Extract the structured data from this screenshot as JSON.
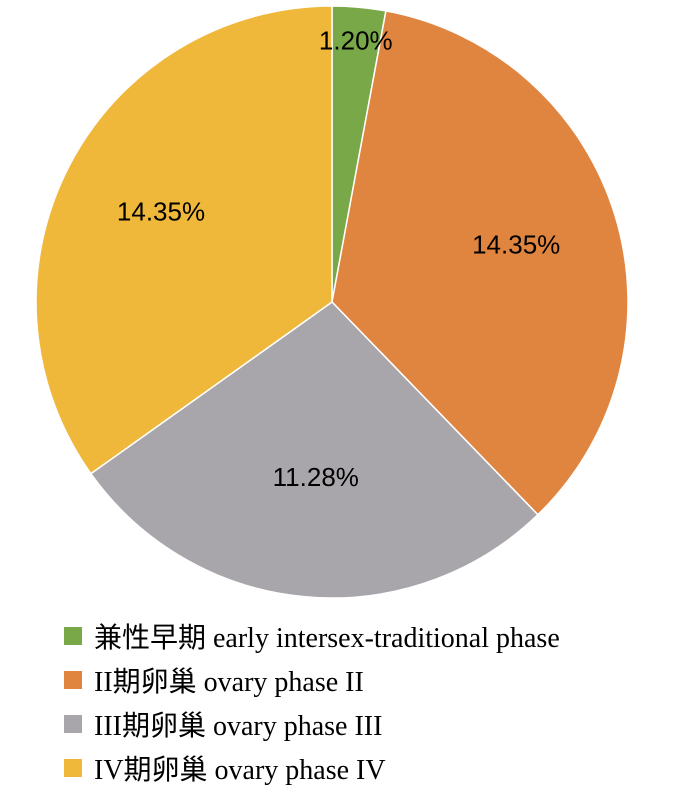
{
  "chart_data": {
    "type": "pie",
    "start": "top",
    "direction": "clockwise",
    "slices": [
      {
        "name": "兼性早期 early intersex-traditional phase",
        "value": 1.2,
        "label": "1.20%",
        "color": "#78a848"
      },
      {
        "name": "II期卵巢 ovary phase II",
        "value": 14.35,
        "label": "14.35%",
        "color": "#e08540"
      },
      {
        "name": "III期卵巢 ovary phase III",
        "value": 11.28,
        "label": "11.28%",
        "color": "#a8a6ab"
      },
      {
        "name": "IV期卵巢 ovary phase IV",
        "value": 14.35,
        "label": "14.35%",
        "color": "#efb83a"
      }
    ]
  }
}
